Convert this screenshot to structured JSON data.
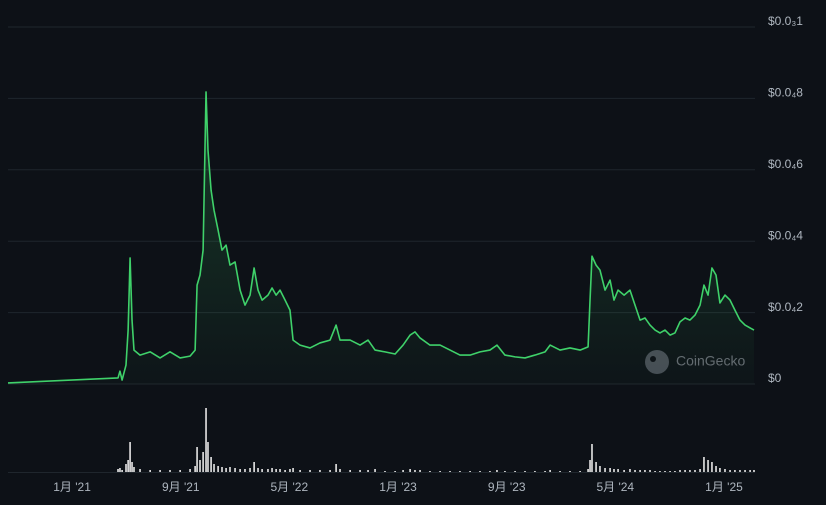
{
  "chart_data": {
    "type": "line",
    "watermark": "CoinGecko",
    "color": "#3fd16a",
    "volume_color": "#e6e6e6",
    "grid": true,
    "xlim": [
      2020.607,
      2025.184
    ],
    "xticks": [
      {
        "value": 2021.0,
        "label": "1月 '21"
      },
      {
        "value": 2021.667,
        "label": "9月 '21"
      },
      {
        "value": 2022.333,
        "label": "5月 '22"
      },
      {
        "value": 2023.0,
        "label": "1月 '23"
      },
      {
        "value": 2023.667,
        "label": "9月 '23"
      },
      {
        "value": 2024.333,
        "label": "5月 '24"
      },
      {
        "value": 2025.0,
        "label": "1月 '25"
      }
    ],
    "ylim": [
      0,
      0.0001
    ],
    "yticks": [
      {
        "value": 0,
        "label": "$0"
      },
      {
        "value": 2e-05,
        "label": "$0.0₄2"
      },
      {
        "value": 4e-05,
        "label": "$0.0₄4"
      },
      {
        "value": 6e-05,
        "label": "$0.0₄6"
      },
      {
        "value": 8e-05,
        "label": "$0.0₄8"
      },
      {
        "value": 0.0001,
        "label": "$0.0₃1"
      }
    ],
    "vlim": [
      0,
      70
    ],
    "x": [
      2020.607,
      2021.282,
      2021.294,
      2021.307,
      2021.331,
      2021.344,
      2021.356,
      2021.368,
      2021.38,
      2021.417,
      2021.479,
      2021.54,
      2021.601,
      2021.663,
      2021.724,
      2021.755,
      2021.767,
      2021.785,
      2021.804,
      2021.822,
      2021.834,
      2021.853,
      2021.871,
      2021.896,
      2021.92,
      2021.945,
      2021.969,
      2022.0,
      2022.031,
      2022.061,
      2022.092,
      2022.117,
      2022.141,
      2022.166,
      2022.202,
      2022.227,
      2022.252,
      2022.276,
      2022.307,
      2022.337,
      2022.356,
      2022.399,
      2022.46,
      2022.521,
      2022.583,
      2022.62,
      2022.644,
      2022.706,
      2022.767,
      2022.816,
      2022.859,
      2022.92,
      2022.982,
      2023.031,
      2023.074,
      2023.104,
      2023.135,
      2023.196,
      2023.258,
      2023.319,
      2023.38,
      2023.442,
      2023.503,
      2023.564,
      2023.607,
      2023.656,
      2023.718,
      2023.779,
      2023.84,
      2023.902,
      2023.933,
      2023.994,
      2024.055,
      2024.117,
      2024.166,
      2024.178,
      2024.19,
      2024.215,
      2024.239,
      2024.27,
      2024.301,
      2024.325,
      2024.35,
      2024.387,
      2024.423,
      2024.454,
      2024.485,
      2024.515,
      2024.546,
      2024.577,
      2024.607,
      2024.638,
      2024.669,
      2024.699,
      2024.73,
      2024.761,
      2024.791,
      2024.822,
      2024.853,
      2024.877,
      2024.902,
      2024.926,
      2024.951,
      2024.975,
      2025.006,
      2025.037,
      2025.067,
      2025.098,
      2025.129,
      2025.16,
      2025.184
    ],
    "values": [
      3e-07,
      1.7e-06,
      3.6e-06,
      1.1e-06,
      5.3e-06,
      1.51e-05,
      3.53e-05,
      1.79e-05,
      9.5e-06,
      8.1e-06,
      9e-06,
      7.3e-06,
      9e-06,
      7.3e-06,
      7.8e-06,
      9.5e-06,
      2.77e-05,
      3.05e-05,
      3.75e-05,
      8.18e-05,
      6.55e-05,
      5.43e-05,
      4.87e-05,
      4.31e-05,
      3.75e-05,
      3.89e-05,
      3.33e-05,
      3.42e-05,
      2.63e-05,
      2.21e-05,
      2.49e-05,
      3.25e-05,
      2.63e-05,
      2.35e-05,
      2.49e-05,
      2.69e-05,
      2.49e-05,
      2.63e-05,
      2.35e-05,
      2.07e-05,
      1.23e-05,
      1.09e-05,
      1.01e-05,
      1.15e-05,
      1.23e-05,
      1.65e-05,
      1.23e-05,
      1.23e-05,
      1.09e-05,
      1.23e-05,
      9.5e-06,
      9e-06,
      8.4e-06,
      1.09e-05,
      1.37e-05,
      1.46e-05,
      1.29e-05,
      1.09e-05,
      1.09e-05,
      9.5e-06,
      8.1e-06,
      8.1e-06,
      9e-06,
      9.5e-06,
      1.09e-05,
      8.1e-06,
      7.6e-06,
      7.3e-06,
      8.1e-06,
      9e-06,
      1.09e-05,
      9.5e-06,
      1.01e-05,
      9.5e-06,
      1.04e-05,
      2.35e-05,
      3.58e-05,
      3.33e-05,
      3.19e-05,
      2.63e-05,
      2.91e-05,
      2.35e-05,
      2.63e-05,
      2.49e-05,
      2.63e-05,
      2.21e-05,
      1.79e-05,
      1.85e-05,
      1.65e-05,
      1.51e-05,
      1.43e-05,
      1.51e-05,
      1.37e-05,
      1.43e-05,
      1.74e-05,
      1.85e-05,
      1.79e-05,
      1.93e-05,
      2.21e-05,
      2.77e-05,
      2.49e-05,
      3.25e-05,
      3.05e-05,
      2.27e-05,
      2.49e-05,
      2.35e-05,
      2.07e-05,
      1.79e-05,
      1.65e-05,
      1.57e-05,
      1.51e-05
    ],
    "volume": [
      0,
      3,
      4,
      2,
      8,
      12,
      30,
      10,
      5,
      3,
      2,
      2,
      2,
      2,
      3,
      6,
      25,
      12,
      20,
      64,
      30,
      15,
      8,
      6,
      5,
      4,
      5,
      4,
      3,
      3,
      4,
      10,
      4,
      3,
      3,
      4,
      3,
      3,
      2,
      3,
      4,
      2,
      2,
      2,
      2,
      8,
      3,
      2,
      2,
      2,
      3,
      1,
      1,
      2,
      3,
      2,
      2,
      1,
      1,
      1,
      1,
      1,
      1,
      1,
      2,
      1,
      1,
      1,
      1,
      1,
      2,
      1,
      1,
      1,
      3,
      12,
      28,
      10,
      6,
      4,
      4,
      3,
      3,
      2,
      3,
      2,
      2,
      2,
      2,
      1,
      1,
      1,
      1,
      1,
      2,
      2,
      2,
      2,
      3,
      15,
      12,
      10,
      6,
      4,
      3,
      2,
      2,
      2,
      2,
      2,
      2
    ]
  }
}
